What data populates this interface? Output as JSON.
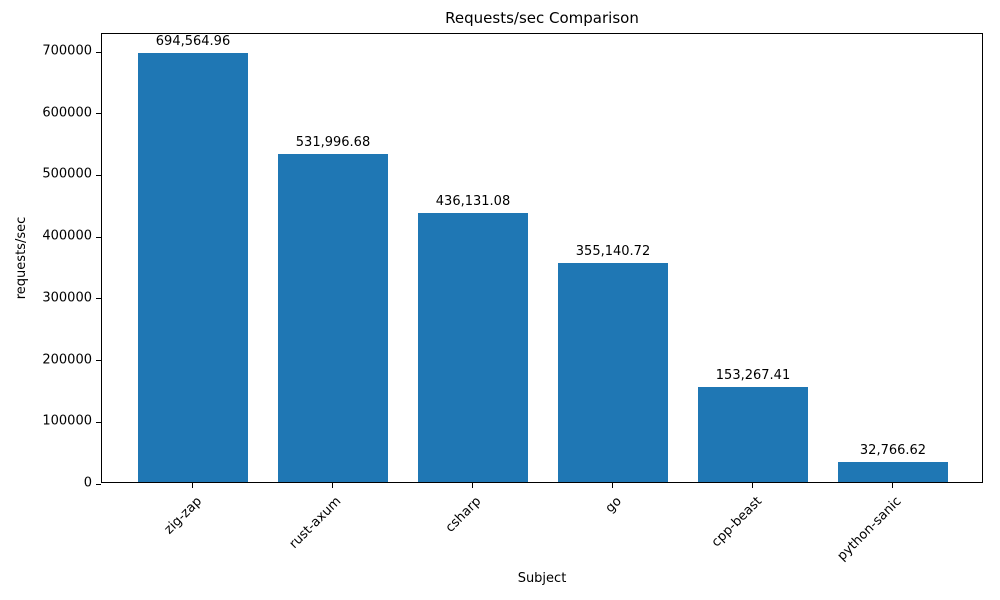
{
  "chart_data": {
    "type": "bar",
    "title": "Requests/sec Comparison",
    "xlabel": "Subject",
    "ylabel": "requests/sec",
    "categories": [
      "zig-zap",
      "rust-axum",
      "csharp",
      "go",
      "cpp-beast",
      "python-sanic"
    ],
    "values": [
      694564.96,
      531996.68,
      436131.08,
      355140.72,
      153267.41,
      32766.62
    ],
    "value_labels": [
      "694,564.96",
      "531,996.68",
      "436,131.08",
      "355,140.72",
      "153,267.41",
      "32,766.62"
    ],
    "yticks": [
      0,
      100000,
      200000,
      300000,
      400000,
      500000,
      600000,
      700000
    ],
    "ytick_labels": [
      "0",
      "100000",
      "200000",
      "300000",
      "400000",
      "500000",
      "600000",
      "700000"
    ],
    "ylim": [
      0,
      729293
    ],
    "bar_color": "#1f77b4",
    "grid": false,
    "legend": false,
    "x_tick_rotation_deg": 45
  }
}
